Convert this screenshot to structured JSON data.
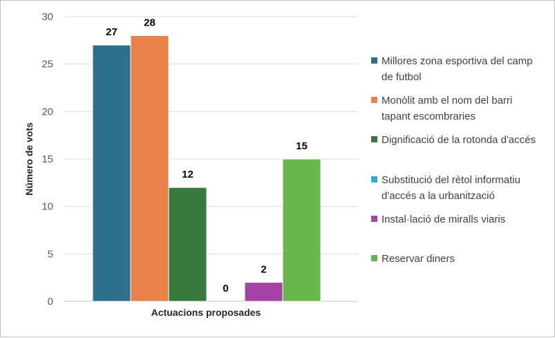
{
  "chart_data": {
    "type": "bar",
    "xlabel": "Actuacions proposades",
    "ylabel": "Número de vots",
    "ylim": [
      0,
      30
    ],
    "yticks": [
      0,
      5,
      10,
      15,
      20,
      25,
      30
    ],
    "grid": true,
    "legend_position": "right",
    "series": [
      {
        "name": "Millores zona esportiva del camp de futbol",
        "value": 27,
        "color": "#2e6e8f"
      },
      {
        "name": "Monòlit amb el nom del barri tapant escombraries",
        "value": 28,
        "color": "#e9814a"
      },
      {
        "name": "Dignificació de la rotonda d'accés",
        "value": 12,
        "color": "#367a40"
      },
      {
        "name": "Substitució del rètol informatiu d'accés a la urbanització",
        "value": 0,
        "color": "#35a7d9"
      },
      {
        "name": "Instal·lació de miralls viaris",
        "value": 2,
        "color": "#a542a5"
      },
      {
        "name": "Reservar diners",
        "value": 15,
        "color": "#69b64a"
      }
    ]
  }
}
